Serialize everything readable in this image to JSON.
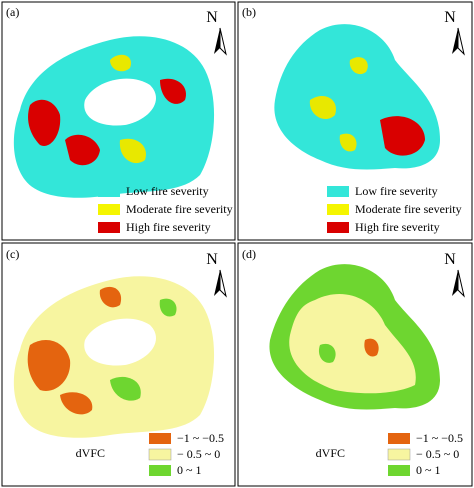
{
  "panels": [
    {
      "label": "(a)",
      "north": "N",
      "legend": [
        "Low fire severity",
        "Moderate fire severity",
        "High fire severity"
      ]
    },
    {
      "label": "(b)",
      "north": "N",
      "legend": [
        "Low fire severity",
        "Moderate fire severity",
        "High fire severity"
      ]
    },
    {
      "label": "(c)",
      "north": "N",
      "legend_title": "dVFC",
      "legend": [
        "−1 ~ −0.5",
        "− 0.5 ~ 0",
        "0 ~ 1"
      ]
    },
    {
      "label": "(d)",
      "north": "N",
      "legend_title": "dVFC",
      "legend": [
        "−1 ~ −0.5",
        "− 0.5 ~ 0",
        "0 ~ 1"
      ]
    }
  ]
}
